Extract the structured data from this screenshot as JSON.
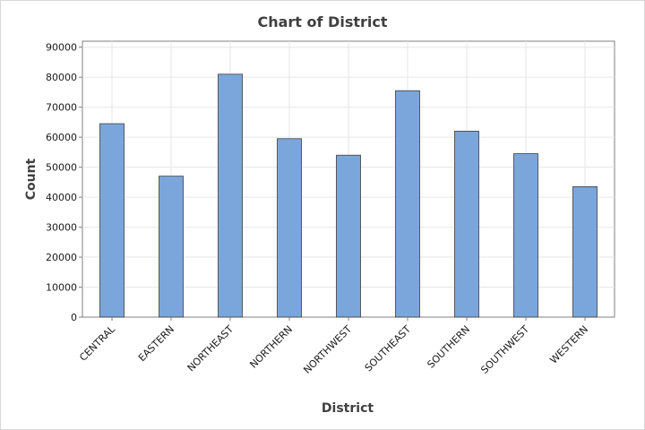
{
  "chart_data": {
    "type": "bar",
    "title": "Chart of District",
    "xlabel": "District",
    "ylabel": "Count",
    "categories": [
      "CENTRAL",
      "EASTERN",
      "NORTHEAST",
      "NORTHERN",
      "NORTHWEST",
      "SOUTHEAST",
      "SOUTHERN",
      "SOUTHWEST",
      "WESTERN"
    ],
    "values": [
      64500,
      47000,
      81000,
      59500,
      54000,
      75500,
      62000,
      54500,
      43500
    ],
    "ylim": [
      0,
      92000
    ],
    "yticks": [
      "0",
      "10000",
      "20000",
      "30000",
      "40000",
      "50000",
      "60000",
      "70000",
      "80000",
      "90000"
    ],
    "grid": true,
    "bar_color": "#7ba6db",
    "bar_edge_color": "#3c3c3c"
  }
}
